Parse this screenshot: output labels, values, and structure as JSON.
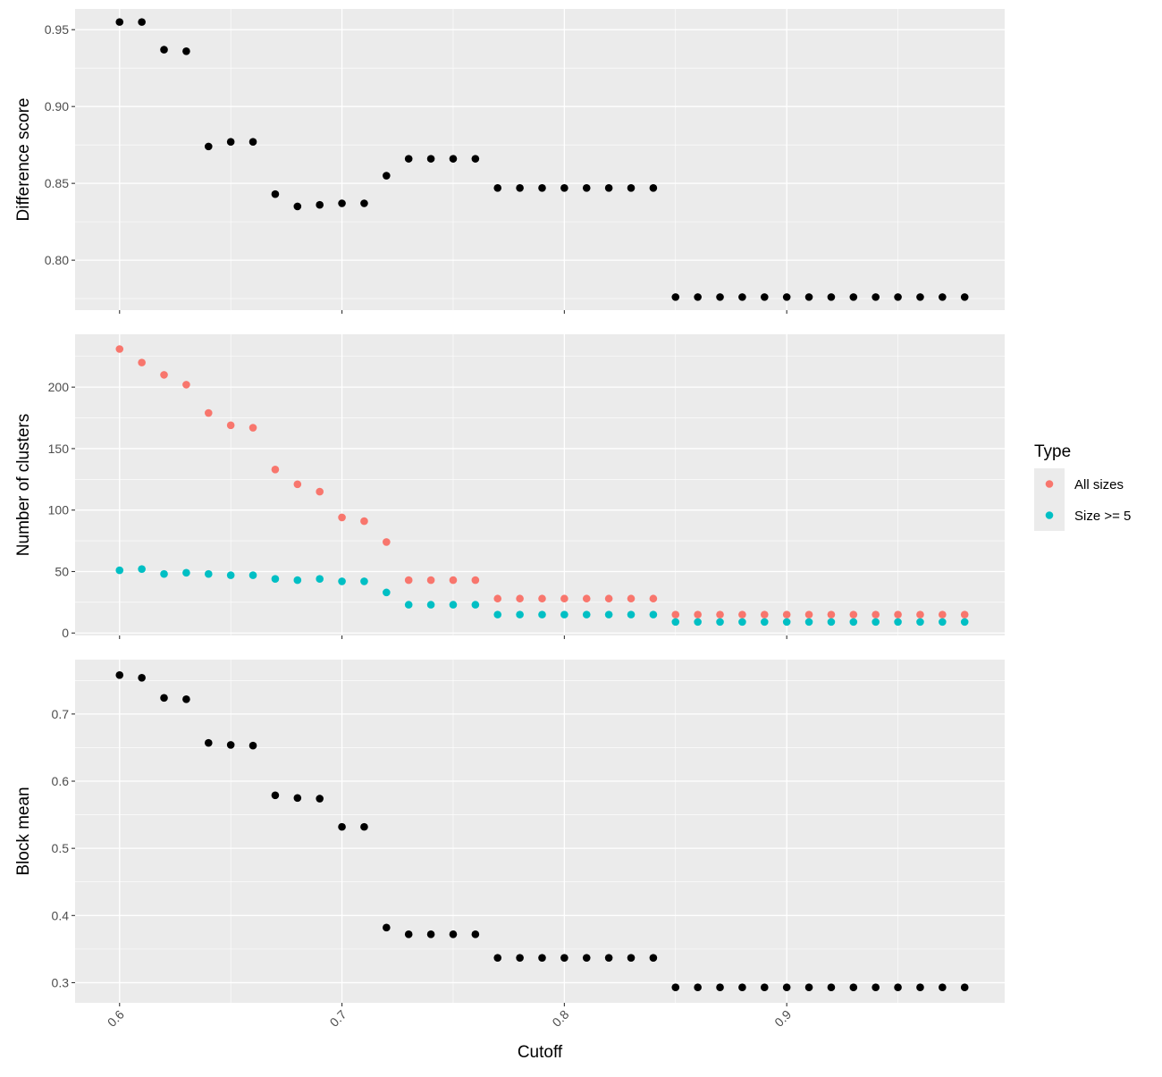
{
  "chart_data": {
    "type": "scatter",
    "xlabel": "Cutoff",
    "x_ticks": [
      "0.6",
      "0.7",
      "0.8",
      "0.9"
    ],
    "xlim": [
      0.58,
      0.998
    ],
    "x": [
      0.6,
      0.61,
      0.62,
      0.63,
      0.64,
      0.65,
      0.66,
      0.67,
      0.68,
      0.69,
      0.7,
      0.71,
      0.72,
      0.73,
      0.74,
      0.75,
      0.76,
      0.77,
      0.78,
      0.79,
      0.8,
      0.81,
      0.82,
      0.83,
      0.84,
      0.85,
      0.86,
      0.87,
      0.88,
      0.89,
      0.9,
      0.91,
      0.92,
      0.93,
      0.94,
      0.95,
      0.96,
      0.97,
      0.98
    ],
    "colors": {
      "panel_bg": "#EBEBEB",
      "grid": "#FFFFFF",
      "black": "#000000",
      "all_sizes": "#F8766D",
      "size5": "#00BFC4",
      "tick": "#4D4D4D"
    },
    "legend": {
      "title": "Type",
      "position": "right",
      "entries": [
        "All sizes",
        "Size >= 5"
      ]
    },
    "panels": [
      {
        "ylabel": "Difference score",
        "ylim": [
          0.7675,
          0.9635
        ],
        "y_ticks": [
          0.8,
          0.85,
          0.9,
          0.95
        ],
        "y_tick_labels": [
          "0.80",
          "0.85",
          "0.90",
          "0.95"
        ],
        "series": [
          {
            "color_key": "black",
            "values": [
              0.955,
              0.955,
              0.937,
              0.936,
              0.874,
              0.877,
              0.877,
              0.843,
              0.835,
              0.836,
              0.837,
              0.837,
              0.855,
              0.866,
              0.866,
              0.866,
              0.866,
              0.847,
              0.847,
              0.847,
              0.847,
              0.847,
              0.847,
              0.847,
              0.847,
              0.776,
              0.776,
              0.776,
              0.776,
              0.776,
              0.776,
              0.776,
              0.776,
              0.776,
              0.776,
              0.776,
              0.776,
              0.776,
              0.776
            ]
          }
        ]
      },
      {
        "ylabel": "Number of clusters",
        "ylim": [
          -2,
          243
        ],
        "y_ticks": [
          0,
          50,
          100,
          150,
          200
        ],
        "y_tick_labels": [
          "0",
          "50",
          "100",
          "150",
          "200"
        ],
        "series": [
          {
            "name": "All sizes",
            "color_key": "all_sizes",
            "values": [
              231,
              220,
              210,
              202,
              179,
              169,
              167,
              133,
              121,
              115,
              94,
              91,
              74,
              43,
              43,
              43,
              43,
              28,
              28,
              28,
              28,
              28,
              28,
              28,
              28,
              15,
              15,
              15,
              15,
              15,
              15,
              15,
              15,
              15,
              15,
              15,
              15,
              15,
              15
            ]
          },
          {
            "name": "Size >= 5",
            "color_key": "size5",
            "values": [
              51,
              52,
              48,
              49,
              48,
              47,
              47,
              44,
              43,
              44,
              42,
              42,
              33,
              23,
              23,
              23,
              23,
              15,
              15,
              15,
              15,
              15,
              15,
              15,
              15,
              9,
              9,
              9,
              9,
              9,
              9,
              9,
              9,
              9,
              9,
              9,
              9,
              9,
              9
            ]
          }
        ]
      },
      {
        "ylabel": "Block mean",
        "ylim": [
          0.27,
          0.781
        ],
        "y_ticks": [
          0.3,
          0.4,
          0.5,
          0.6,
          0.7
        ],
        "y_tick_labels": [
          "0.3",
          "0.4",
          "0.5",
          "0.6",
          "0.7"
        ],
        "series": [
          {
            "color_key": "black",
            "values": [
              0.758,
              0.754,
              0.724,
              0.722,
              0.657,
              0.654,
              0.653,
              0.579,
              0.575,
              0.574,
              0.532,
              0.532,
              0.382,
              0.372,
              0.372,
              0.372,
              0.372,
              0.337,
              0.337,
              0.337,
              0.337,
              0.337,
              0.337,
              0.337,
              0.337,
              0.293,
              0.293,
              0.293,
              0.293,
              0.293,
              0.293,
              0.293,
              0.293,
              0.293,
              0.293,
              0.293,
              0.293,
              0.293,
              0.293
            ]
          }
        ]
      }
    ]
  }
}
